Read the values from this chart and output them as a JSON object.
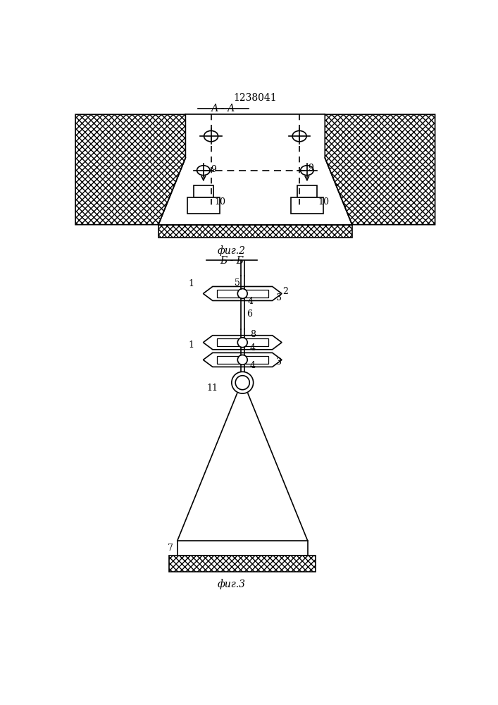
{
  "title": "1238041",
  "fig2_label": "А - А",
  "fig3_label": "Б - Б",
  "fig2_caption": "фиг.2",
  "fig3_caption": "фиг.3",
  "bg_color": "#ffffff",
  "line_color": "#000000"
}
